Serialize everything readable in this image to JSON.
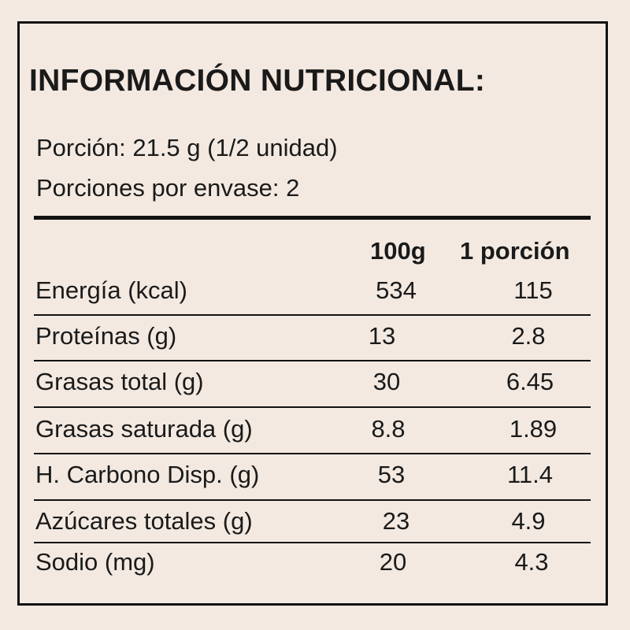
{
  "title": "INFORMACIÓN NUTRICIONAL:",
  "serving": {
    "portion": "Porción: 21.5 g (1/2 unidad)",
    "per_package": "Porciones por envase: 2"
  },
  "columns": {
    "per_100g": "100g",
    "per_portion": "1 porción"
  },
  "rows": [
    {
      "label": "Energía (kcal)",
      "per_100g": "534",
      "per_portion": "115"
    },
    {
      "label": "Proteínas (g)",
      "per_100g": "13",
      "per_portion": "2.8"
    },
    {
      "label": "Grasas total (g)",
      "per_100g": "30",
      "per_portion": "6.45"
    },
    {
      "label": "Grasas saturada (g)",
      "per_100g": "8.8",
      "per_portion": "1.89"
    },
    {
      "label": "H. Carbono Disp. (g)",
      "per_100g": "53",
      "per_portion": "11.4"
    },
    {
      "label": "Azúcares totales (g)",
      "per_100g": "23",
      "per_portion": "4.9"
    },
    {
      "label": "Sodio (mg)",
      "per_100g": "20",
      "per_portion": "4.3"
    }
  ]
}
